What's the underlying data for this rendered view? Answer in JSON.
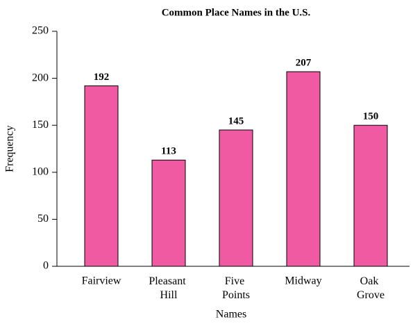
{
  "chart_data": {
    "type": "bar",
    "title": "Common Place Names in the U.S.",
    "x_label": "Names",
    "y_label": "Frequency",
    "categories": [
      "Fairview",
      "Pleasant Hill",
      "Five Points",
      "Midway",
      "Oak Grove"
    ],
    "values": [
      192,
      113,
      145,
      207,
      150
    ],
    "color": "#f05aa3",
    "ylim": [
      0,
      250
    ],
    "yticks": [
      0,
      50,
      100,
      150,
      200,
      250
    ],
    "grid": false
  }
}
